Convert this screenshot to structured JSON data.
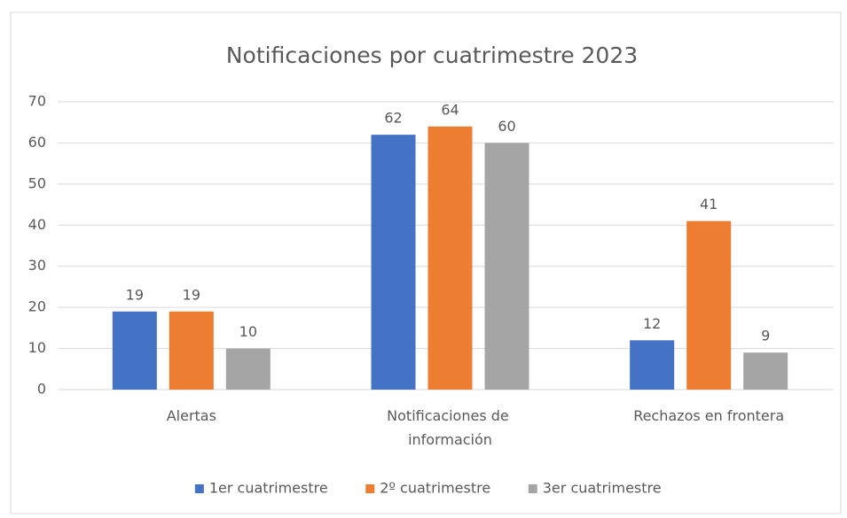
{
  "chart_data": {
    "type": "bar",
    "title": "Notificaciones por cuatrimestre 2023",
    "categories": [
      "Alertas",
      "Notificaciones de información",
      "Rechazos en frontera"
    ],
    "series": [
      {
        "name": "1er cuatrimestre",
        "color": "#4472c4",
        "values": [
          19,
          62,
          12
        ]
      },
      {
        "name": "2º cuatrimestre",
        "color": "#ed7d31",
        "values": [
          19,
          64,
          41
        ]
      },
      {
        "name": "3er cuatrimestre",
        "color": "#a5a5a5",
        "values": [
          10,
          60,
          9
        ]
      }
    ],
    "ylim": [
      0,
      70
    ],
    "yticks": [
      0,
      10,
      20,
      30,
      40,
      50,
      60,
      70
    ],
    "grid": true,
    "legend": "bottom"
  }
}
